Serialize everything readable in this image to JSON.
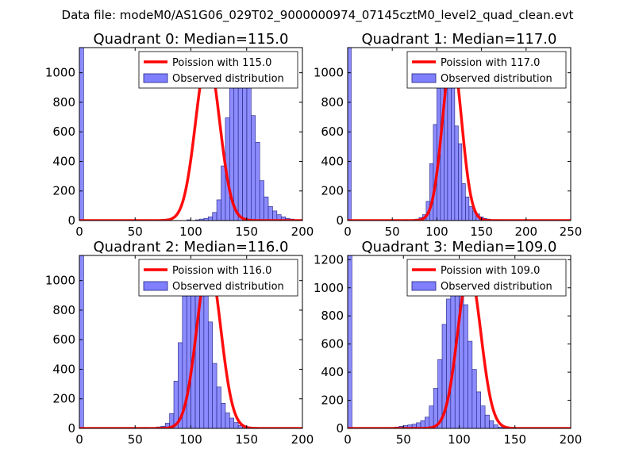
{
  "figure": {
    "suptitle": "Data file: modeM0/AS1G06_029T02_9000000974_07145cztM0_level2_quad_clean.evt",
    "colors": {
      "fit": "#ff0000",
      "bars": "#8080ff",
      "bar_edge": "#20207f",
      "background": "#ffffff"
    }
  },
  "chart_data": [
    {
      "type": "bar",
      "title": "Quadrant 0: Median=115.0",
      "xlim": [
        0,
        200
      ],
      "ylim": [
        0,
        1170
      ],
      "xticks": [
        "0",
        "50",
        "100",
        "150",
        "200"
      ],
      "yticks": [
        "0",
        "200",
        "400",
        "600",
        "800",
        "1000"
      ],
      "xtick_values": [
        0,
        50,
        100,
        150,
        200
      ],
      "ytick_values": [
        0,
        200,
        400,
        600,
        800,
        1000
      ],
      "legend": [
        "Poission with 115.0",
        "Observed distribution"
      ],
      "fit_mean": 115.0,
      "fit_peak": 1110,
      "bins": {
        "start": 0,
        "width": 3.85,
        "count": 52
      },
      "counts": [
        1170,
        0,
        0,
        0,
        0,
        0,
        0,
        0,
        0,
        0,
        0,
        0,
        0,
        0,
        0,
        0,
        0,
        0,
        0,
        0,
        0,
        0,
        0,
        0,
        0,
        5,
        0,
        5,
        10,
        15,
        25,
        55,
        140,
        370,
        695,
        945,
        1055,
        1120,
        1050,
        960,
        710,
        530,
        270,
        160,
        95,
        65,
        40,
        25,
        15,
        10,
        5,
        5
      ]
    },
    {
      "type": "bar",
      "title": "Quadrant 1: Median=117.0",
      "xlim": [
        0,
        250
      ],
      "ylim": [
        0,
        1170
      ],
      "xticks": [
        "0",
        "50",
        "100",
        "150",
        "200",
        "250"
      ],
      "yticks": [
        "0",
        "200",
        "400",
        "600",
        "800",
        "1000"
      ],
      "xtick_values": [
        0,
        50,
        100,
        150,
        200,
        250
      ],
      "ytick_values": [
        0,
        200,
        400,
        600,
        800,
        1000
      ],
      "legend": [
        "Poission with 117.0",
        "Observed distribution"
      ],
      "fit_mean": 117.0,
      "fit_peak": 1110,
      "bins": {
        "start": 0,
        "width": 4.0,
        "count": 52
      },
      "counts": [
        1170,
        0,
        0,
        0,
        0,
        0,
        0,
        0,
        0,
        0,
        0,
        0,
        0,
        0,
        0,
        0,
        5,
        0,
        5,
        10,
        20,
        40,
        130,
        385,
        650,
        895,
        1005,
        1110,
        1050,
        930,
        640,
        520,
        250,
        160,
        95,
        65,
        45,
        25,
        15,
        10,
        5,
        5,
        5,
        0,
        0,
        0,
        0,
        0,
        0,
        0,
        0,
        0
      ]
    },
    {
      "type": "bar",
      "title": "Quadrant 2: Median=116.0",
      "xlim": [
        0,
        200
      ],
      "ylim": [
        0,
        1170
      ],
      "xticks": [
        "0",
        "50",
        "100",
        "150",
        "200"
      ],
      "yticks": [
        "0",
        "200",
        "400",
        "600",
        "800",
        "1000"
      ],
      "xtick_values": [
        0,
        50,
        100,
        150,
        200
      ],
      "ytick_values": [
        0,
        200,
        400,
        600,
        800,
        1000
      ],
      "legend": [
        "Poission with 116.0",
        "Observed distribution"
      ],
      "fit_mean": 116.0,
      "fit_peak": 1120,
      "bins": {
        "start": 0,
        "width": 3.85,
        "count": 52
      },
      "counts": [
        1170,
        0,
        0,
        0,
        0,
        0,
        0,
        0,
        0,
        0,
        0,
        0,
        0,
        0,
        0,
        5,
        0,
        5,
        10,
        15,
        35,
        100,
        320,
        580,
        895,
        1055,
        1120,
        1100,
        1020,
        935,
        720,
        440,
        280,
        170,
        105,
        70,
        40,
        20,
        10,
        5,
        5,
        5,
        0,
        0,
        0,
        0,
        0,
        0,
        0,
        0,
        0,
        0
      ]
    },
    {
      "type": "bar",
      "title": "Quadrant 3: Median=109.0",
      "xlim": [
        0,
        200
      ],
      "ylim": [
        0,
        1230
      ],
      "xticks": [
        "0",
        "50",
        "100",
        "150",
        "200"
      ],
      "yticks": [
        "0",
        "200",
        "400",
        "600",
        "800",
        "1000",
        "1200"
      ],
      "xtick_values": [
        0,
        50,
        100,
        150,
        200
      ],
      "ytick_values": [
        0,
        200,
        400,
        600,
        800,
        1000,
        1200
      ],
      "legend": [
        "Poission with 109.0",
        "Observed distribution"
      ],
      "fit_mean": 109.0,
      "fit_peak": 1120,
      "bins": {
        "start": 0,
        "width": 3.85,
        "count": 52
      },
      "counts": [
        1230,
        0,
        0,
        0,
        0,
        0,
        0,
        0,
        0,
        0,
        5,
        10,
        15,
        20,
        25,
        30,
        40,
        55,
        80,
        160,
        285,
        490,
        740,
        920,
        1045,
        1110,
        1005,
        880,
        620,
        420,
        260,
        160,
        95,
        55,
        25,
        10,
        5,
        5,
        0,
        0,
        0,
        0,
        0,
        0,
        0,
        0,
        0,
        0,
        0,
        0,
        0,
        0
      ]
    }
  ]
}
